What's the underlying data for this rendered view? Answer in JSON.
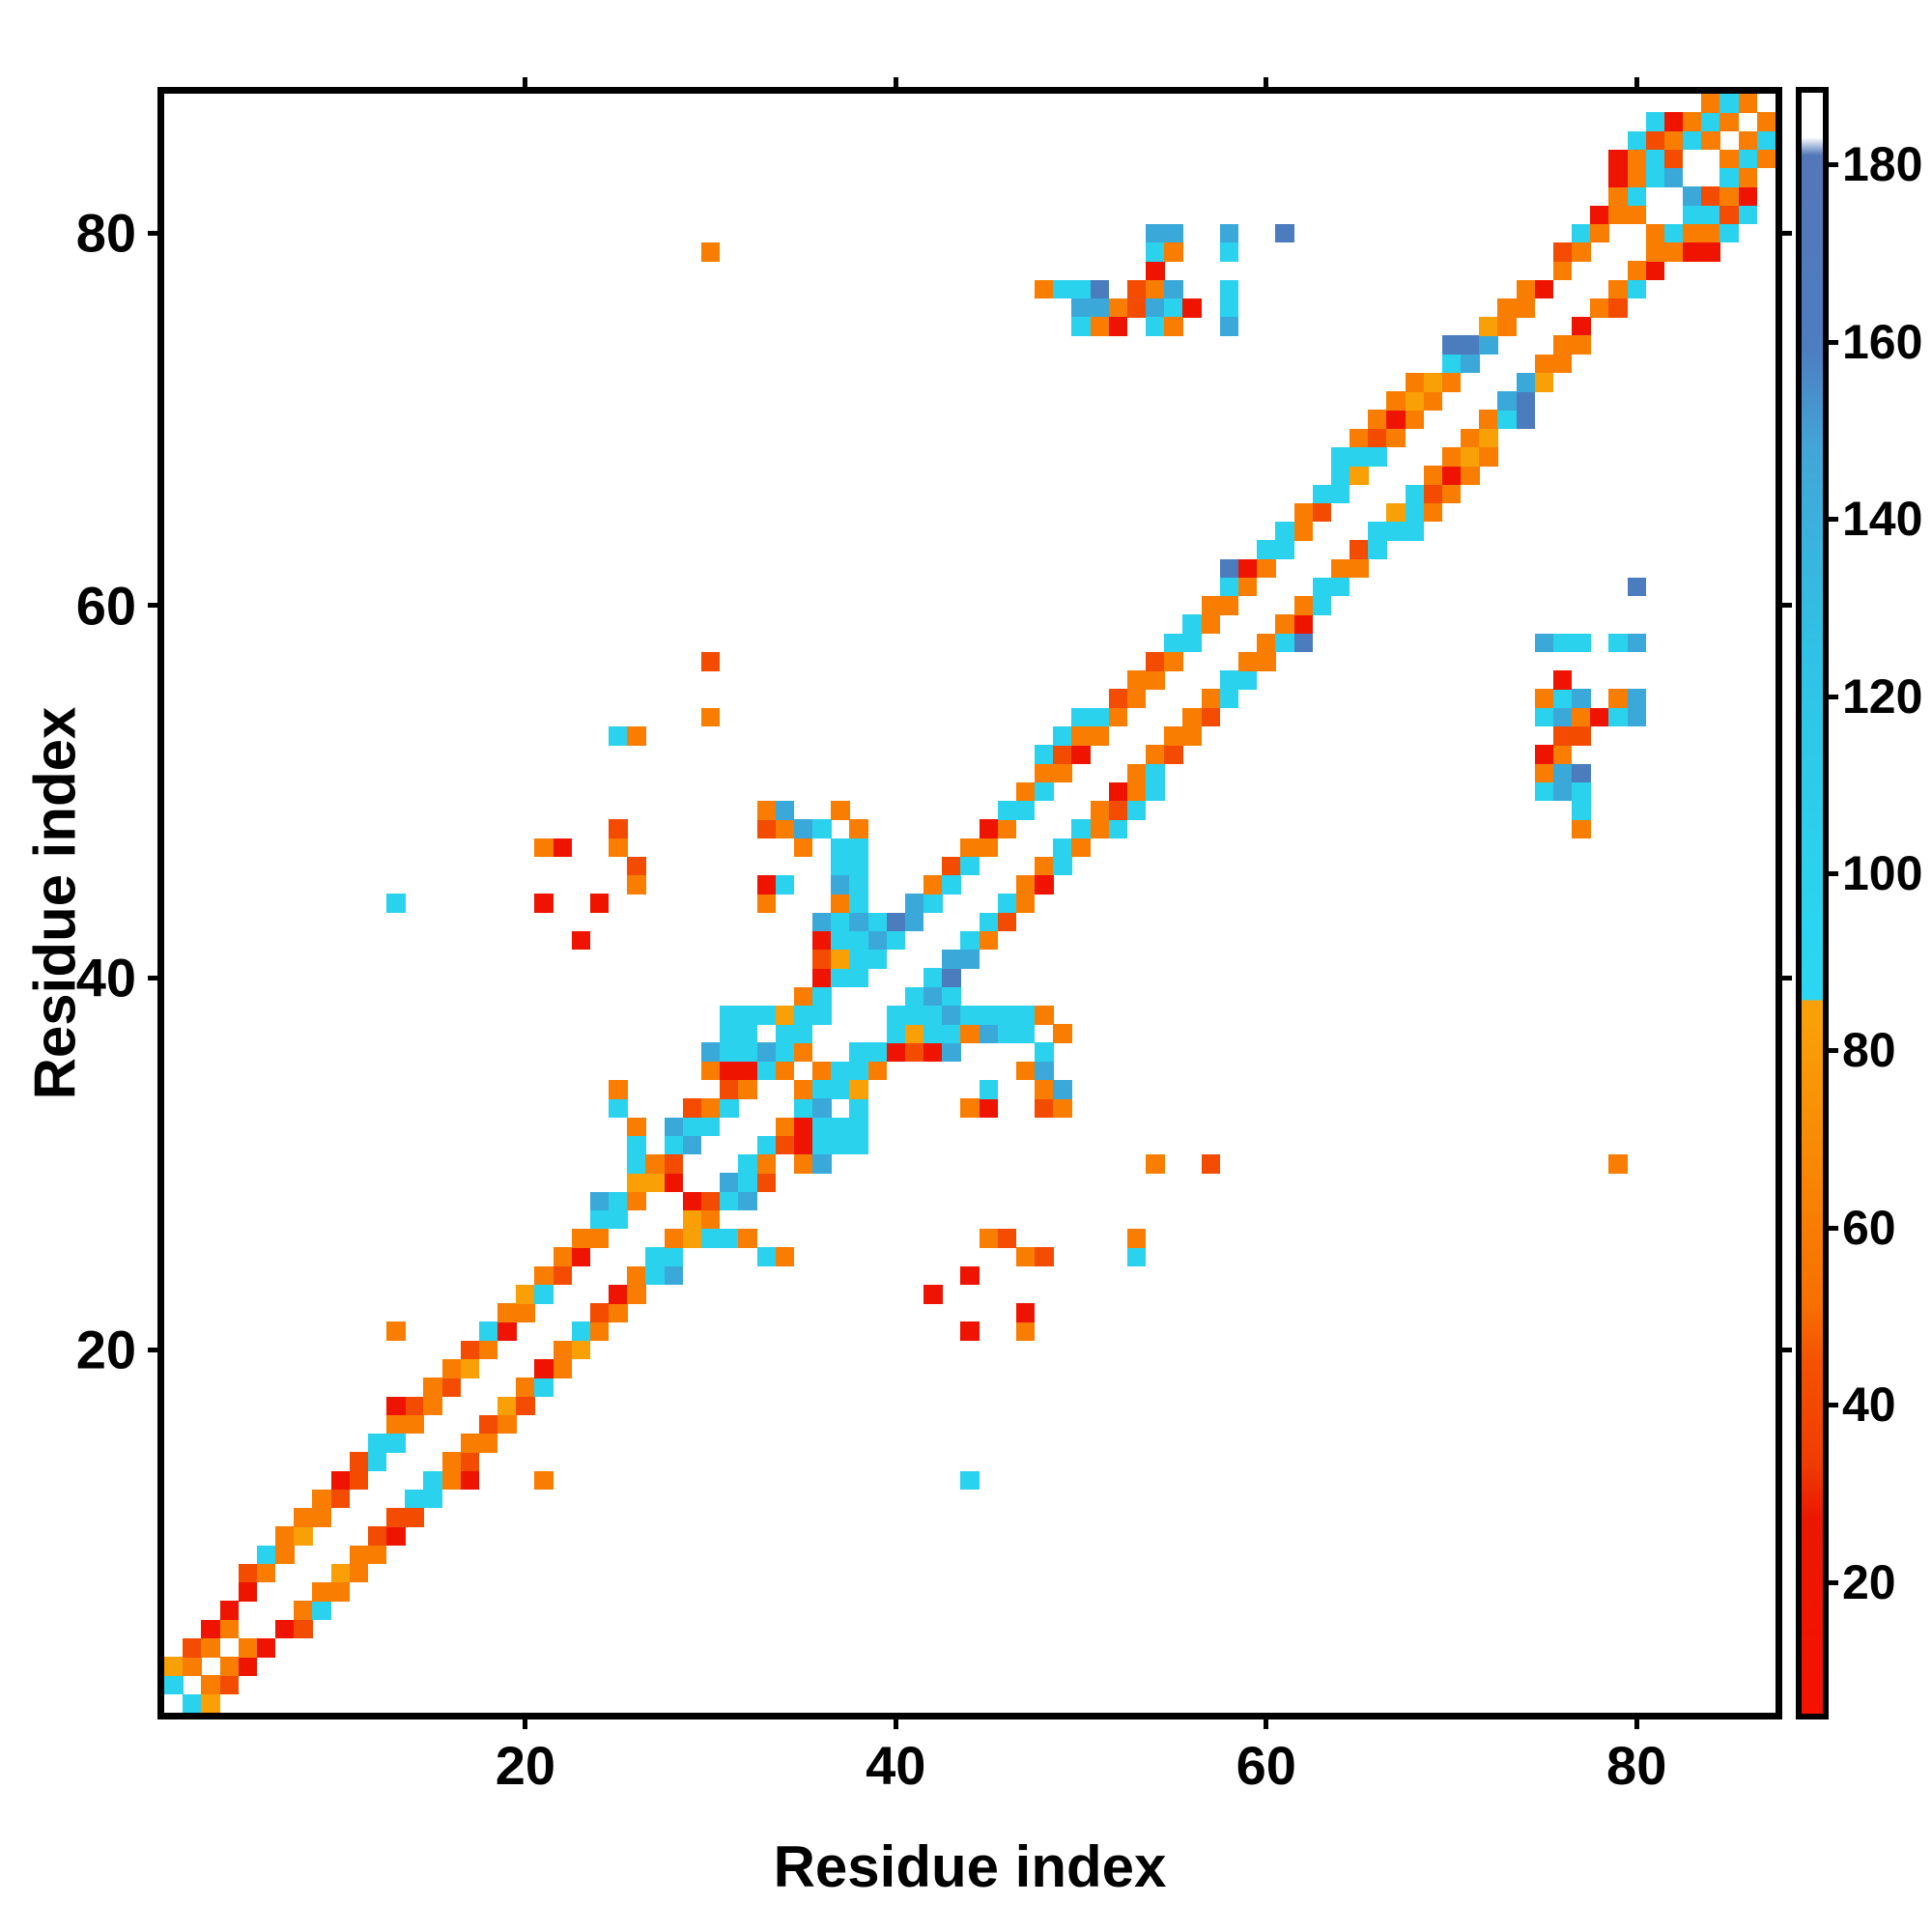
{
  "figure": {
    "kind": "protein residue contact map heatmap with colorbar",
    "background": "#ffffff",
    "frame_color": "#000000"
  },
  "chart_data": {
    "type": "heatmap",
    "title": "",
    "xlabel": "Residue index",
    "ylabel": "Residue index",
    "x_range": [
      1,
      87
    ],
    "y_range": [
      1,
      87
    ],
    "x_ticks": [
      20,
      40,
      60,
      80
    ],
    "y_ticks": [
      20,
      40,
      60,
      80
    ],
    "grid": false,
    "symmetric": true,
    "empty_color": "#ffffff",
    "value_colors": {
      "20": "#ee1400",
      "45": "#f34b00",
      "67": "#f87d00",
      "80": "#f9a007",
      "100": "#2ad2ee",
      "130": "#3aa9da",
      "170": "#4b7cbe"
    },
    "colorbar": {
      "ticks": [
        20,
        40,
        60,
        80,
        100,
        120,
        140,
        160,
        180
      ],
      "vmin": 6,
      "vmax": 188,
      "position": "right",
      "stops": [
        [
          6,
          "#f51200"
        ],
        [
          28,
          "#ea1800"
        ],
        [
          34,
          "#ef3c00"
        ],
        [
          46,
          "#f35400"
        ],
        [
          52,
          "#f77000"
        ],
        [
          84,
          "#f9a008"
        ],
        [
          86,
          "#f9a008"
        ],
        [
          86.2,
          "#2bd7f2"
        ],
        [
          100,
          "#2bd2ee"
        ],
        [
          125,
          "#30c2e6"
        ],
        [
          148,
          "#42a6d7"
        ],
        [
          159,
          "#4d7ec0"
        ],
        [
          181,
          "#5377b9"
        ],
        [
          183,
          "#ffffff"
        ],
        [
          188,
          "#ffffff"
        ]
      ]
    },
    "cells": [
      [
        1,
        2,
        100
      ],
      [
        1,
        3,
        80
      ],
      [
        2,
        3,
        67
      ],
      [
        2,
        4,
        45
      ],
      [
        3,
        4,
        67
      ],
      [
        3,
        5,
        20
      ],
      [
        4,
        5,
        67
      ],
      [
        4,
        6,
        20
      ],
      [
        5,
        7,
        20
      ],
      [
        5,
        8,
        45
      ],
      [
        6,
        8,
        67
      ],
      [
        6,
        9,
        100
      ],
      [
        7,
        9,
        67
      ],
      [
        7,
        10,
        67
      ],
      [
        8,
        10,
        80
      ],
      [
        8,
        11,
        67
      ],
      [
        9,
        11,
        67
      ],
      [
        9,
        12,
        67
      ],
      [
        10,
        12,
        45
      ],
      [
        10,
        13,
        20
      ],
      [
        11,
        13,
        45
      ],
      [
        11,
        14,
        45
      ],
      [
        12,
        14,
        100
      ],
      [
        12,
        15,
        100
      ],
      [
        13,
        15,
        100
      ],
      [
        13,
        16,
        67
      ],
      [
        14,
        16,
        67
      ],
      [
        14,
        17,
        45
      ],
      [
        15,
        17,
        67
      ],
      [
        13,
        17,
        20
      ],
      [
        13,
        21,
        67
      ],
      [
        15,
        18,
        67
      ],
      [
        16,
        18,
        45
      ],
      [
        16,
        19,
        67
      ],
      [
        17,
        19,
        80
      ],
      [
        17,
        20,
        45
      ],
      [
        18,
        20,
        67
      ],
      [
        18,
        21,
        100
      ],
      [
        19,
        21,
        20
      ],
      [
        19,
        22,
        67
      ],
      [
        20,
        22,
        67
      ],
      [
        20,
        23,
        80
      ],
      [
        21,
        23,
        100
      ],
      [
        21,
        24,
        67
      ],
      [
        22,
        24,
        45
      ],
      [
        22,
        25,
        67
      ],
      [
        23,
        25,
        20
      ],
      [
        23,
        26,
        67
      ],
      [
        24,
        26,
        67
      ],
      [
        24,
        27,
        100
      ],
      [
        25,
        27,
        100
      ],
      [
        24,
        28,
        130
      ],
      [
        25,
        28,
        100
      ],
      [
        26,
        28,
        67
      ],
      [
        26,
        29,
        80
      ],
      [
        27,
        29,
        80
      ],
      [
        28,
        29,
        20
      ],
      [
        26,
        30,
        100
      ],
      [
        27,
        30,
        67
      ],
      [
        28,
        30,
        45
      ],
      [
        28,
        31,
        100
      ],
      [
        29,
        31,
        130
      ],
      [
        28,
        32,
        130
      ],
      [
        29,
        32,
        100
      ],
      [
        30,
        32,
        100
      ],
      [
        26,
        31,
        100
      ],
      [
        26,
        32,
        67
      ],
      [
        25,
        33,
        100
      ],
      [
        25,
        34,
        67
      ],
      [
        29,
        33,
        45
      ],
      [
        30,
        33,
        67
      ],
      [
        31,
        33,
        100
      ],
      [
        31,
        34,
        45
      ],
      [
        32,
        34,
        67
      ],
      [
        31,
        35,
        20
      ],
      [
        32,
        35,
        20
      ],
      [
        33,
        35,
        100
      ],
      [
        31,
        36,
        100
      ],
      [
        32,
        36,
        100
      ],
      [
        34,
        36,
        100
      ],
      [
        30,
        35,
        67
      ],
      [
        30,
        36,
        130
      ],
      [
        33,
        36,
        130
      ],
      [
        34,
        35,
        67
      ],
      [
        35,
        36,
        67
      ],
      [
        31,
        37,
        100
      ],
      [
        32,
        37,
        100
      ],
      [
        34,
        37,
        100
      ],
      [
        35,
        37,
        100
      ],
      [
        31,
        38,
        100
      ],
      [
        32,
        38,
        100
      ],
      [
        33,
        38,
        100
      ],
      [
        34,
        38,
        80
      ],
      [
        35,
        38,
        100
      ],
      [
        36,
        38,
        100
      ],
      [
        35,
        39,
        67
      ],
      [
        36,
        39,
        100
      ],
      [
        36,
        40,
        20
      ],
      [
        37,
        40,
        100
      ],
      [
        38,
        40,
        100
      ],
      [
        36,
        41,
        45
      ],
      [
        37,
        41,
        80
      ],
      [
        38,
        41,
        100
      ],
      [
        39,
        41,
        100
      ],
      [
        36,
        42,
        20
      ],
      [
        37,
        42,
        100
      ],
      [
        38,
        42,
        100
      ],
      [
        39,
        42,
        130
      ],
      [
        40,
        42,
        100
      ],
      [
        36,
        43,
        130
      ],
      [
        37,
        43,
        100
      ],
      [
        38,
        43,
        130
      ],
      [
        39,
        43,
        100
      ],
      [
        40,
        43,
        170
      ],
      [
        41,
        43,
        130
      ],
      [
        37,
        44,
        67
      ],
      [
        38,
        44,
        100
      ],
      [
        41,
        44,
        130
      ],
      [
        42,
        44,
        100
      ],
      [
        37,
        45,
        130
      ],
      [
        38,
        45,
        100
      ],
      [
        42,
        45,
        67
      ],
      [
        43,
        45,
        100
      ],
      [
        37,
        46,
        100
      ],
      [
        38,
        46,
        100
      ],
      [
        43,
        46,
        45
      ],
      [
        44,
        46,
        100
      ],
      [
        36,
        48,
        100
      ],
      [
        37,
        47,
        100
      ],
      [
        38,
        47,
        100
      ],
      [
        44,
        47,
        67
      ],
      [
        45,
        47,
        67
      ],
      [
        37,
        49,
        67
      ],
      [
        38,
        48,
        67
      ],
      [
        45,
        48,
        20
      ],
      [
        46,
        48,
        67
      ],
      [
        35,
        47,
        67
      ],
      [
        35,
        48,
        130
      ],
      [
        33,
        44,
        67
      ],
      [
        33,
        45,
        20
      ],
      [
        34,
        45,
        100
      ],
      [
        33,
        48,
        45
      ],
      [
        34,
        48,
        67
      ],
      [
        33,
        49,
        67
      ],
      [
        34,
        49,
        130
      ],
      [
        46,
        49,
        100
      ],
      [
        47,
        49,
        100
      ],
      [
        47,
        50,
        67
      ],
      [
        48,
        50,
        100
      ],
      [
        48,
        51,
        67
      ],
      [
        49,
        51,
        67
      ],
      [
        48,
        52,
        100
      ],
      [
        49,
        52,
        45
      ],
      [
        50,
        52,
        20
      ],
      [
        49,
        53,
        100
      ],
      [
        50,
        53,
        67
      ],
      [
        50,
        54,
        100
      ],
      [
        51,
        53,
        67
      ],
      [
        51,
        54,
        100
      ],
      [
        52,
        54,
        67
      ],
      [
        52,
        55,
        45
      ],
      [
        53,
        55,
        67
      ],
      [
        53,
        56,
        67
      ],
      [
        54,
        56,
        67
      ],
      [
        54,
        57,
        45
      ],
      [
        55,
        57,
        67
      ],
      [
        55,
        58,
        100
      ],
      [
        56,
        58,
        100
      ],
      [
        56,
        59,
        100
      ],
      [
        57,
        59,
        67
      ],
      [
        57,
        60,
        67
      ],
      [
        58,
        60,
        67
      ],
      [
        58,
        61,
        100
      ],
      [
        58,
        62,
        170
      ],
      [
        59,
        61,
        67
      ],
      [
        59,
        62,
        20
      ],
      [
        60,
        62,
        67
      ],
      [
        60,
        63,
        100
      ],
      [
        61,
        63,
        100
      ],
      [
        61,
        64,
        100
      ],
      [
        62,
        64,
        67
      ],
      [
        62,
        65,
        67
      ],
      [
        63,
        65,
        45
      ],
      [
        63,
        66,
        100
      ],
      [
        64,
        66,
        100
      ],
      [
        64,
        67,
        100
      ],
      [
        65,
        67,
        80
      ],
      [
        64,
        68,
        100
      ],
      [
        65,
        68,
        100
      ],
      [
        66,
        68,
        100
      ],
      [
        65,
        69,
        67
      ],
      [
        66,
        69,
        45
      ],
      [
        67,
        69,
        67
      ],
      [
        66,
        70,
        67
      ],
      [
        67,
        70,
        20
      ],
      [
        68,
        70,
        67
      ],
      [
        67,
        71,
        67
      ],
      [
        68,
        71,
        80
      ],
      [
        69,
        71,
        67
      ],
      [
        68,
        72,
        67
      ],
      [
        69,
        72,
        80
      ],
      [
        70,
        72,
        67
      ],
      [
        70,
        73,
        100
      ],
      [
        71,
        73,
        130
      ],
      [
        70,
        74,
        170
      ],
      [
        71,
        74,
        170
      ],
      [
        72,
        74,
        130
      ],
      [
        72,
        75,
        80
      ],
      [
        73,
        75,
        67
      ],
      [
        73,
        76,
        67
      ],
      [
        74,
        76,
        67
      ],
      [
        75,
        77,
        20
      ],
      [
        74,
        77,
        67
      ],
      [
        76,
        78,
        67
      ],
      [
        76,
        79,
        45
      ],
      [
        77,
        79,
        67
      ],
      [
        77,
        80,
        100
      ],
      [
        78,
        80,
        67
      ],
      [
        78,
        81,
        20
      ],
      [
        79,
        81,
        67
      ],
      [
        79,
        82,
        67
      ],
      [
        80,
        82,
        100
      ],
      [
        79,
        83,
        20
      ],
      [
        80,
        83,
        67
      ],
      [
        81,
        83,
        100
      ],
      [
        82,
        83,
        130
      ],
      [
        79,
        84,
        20
      ],
      [
        80,
        84,
        67
      ],
      [
        81,
        84,
        100
      ],
      [
        82,
        84,
        45
      ],
      [
        80,
        85,
        100
      ],
      [
        81,
        85,
        45
      ],
      [
        82,
        85,
        67
      ],
      [
        83,
        85,
        100
      ],
      [
        81,
        86,
        100
      ],
      [
        82,
        86,
        20
      ],
      [
        83,
        86,
        67
      ],
      [
        84,
        86,
        100
      ],
      [
        85,
        86,
        67
      ],
      [
        84,
        87,
        67
      ],
      [
        85,
        87,
        100
      ],
      [
        86,
        87,
        67
      ],
      [
        80,
        81,
        67
      ],
      [
        84,
        85,
        67
      ],
      [
        48,
        77,
        67
      ],
      [
        49,
        77,
        100
      ],
      [
        50,
        77,
        100
      ],
      [
        51,
        77,
        170
      ],
      [
        53,
        77,
        45
      ],
      [
        54,
        77,
        67
      ],
      [
        58,
        77,
        100
      ],
      [
        50,
        76,
        130
      ],
      [
        51,
        76,
        130
      ],
      [
        52,
        76,
        67
      ],
      [
        53,
        76,
        45
      ],
      [
        54,
        76,
        130
      ],
      [
        55,
        76,
        100
      ],
      [
        56,
        76,
        20
      ],
      [
        58,
        76,
        100
      ],
      [
        50,
        75,
        100
      ],
      [
        51,
        75,
        67
      ],
      [
        52,
        75,
        20
      ],
      [
        54,
        75,
        100
      ],
      [
        55,
        75,
        67
      ],
      [
        58,
        75,
        130
      ],
      [
        54,
        78,
        20
      ],
      [
        54,
        79,
        100
      ],
      [
        55,
        79,
        67
      ],
      [
        58,
        79,
        100
      ],
      [
        54,
        80,
        130
      ],
      [
        55,
        80,
        130
      ],
      [
        58,
        80,
        130
      ],
      [
        55,
        77,
        130
      ],
      [
        61,
        80,
        170
      ],
      [
        30,
        79,
        67
      ],
      [
        13,
        44,
        100
      ],
      [
        21,
        44,
        20
      ],
      [
        21,
        47,
        67
      ],
      [
        22,
        47,
        20
      ],
      [
        25,
        47,
        67
      ],
      [
        25,
        48,
        45
      ],
      [
        25,
        53,
        100
      ],
      [
        26,
        53,
        67
      ],
      [
        30,
        54,
        67
      ],
      [
        30,
        57,
        45
      ],
      [
        23,
        42,
        20
      ],
      [
        24,
        44,
        20
      ],
      [
        26,
        45,
        67
      ],
      [
        26,
        46,
        45
      ]
    ]
  }
}
